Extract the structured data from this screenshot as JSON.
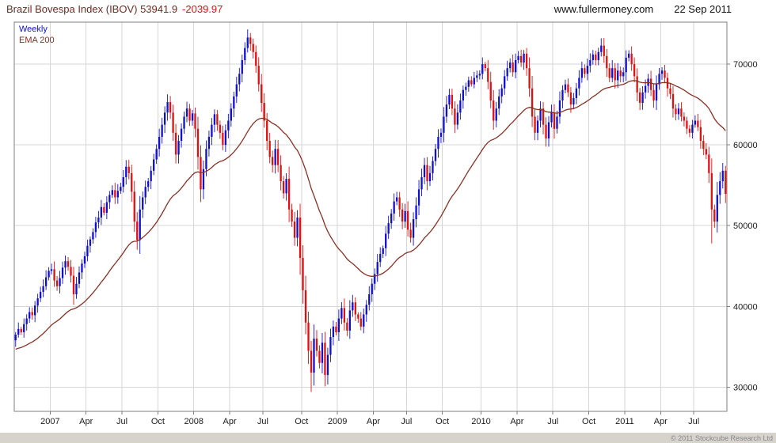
{
  "header": {
    "title": "Brazil Bovespa Index (IBOV) 53941.9",
    "change": "-2039.97",
    "site": "www.fullermoney.com",
    "date": "22 Sep 2011"
  },
  "legend": {
    "timeframe": "Weekly",
    "ema": "EMA 200"
  },
  "footer": {
    "copyright": "© 2011 Stockcube Research Ltd"
  },
  "colors": {
    "up": "#1010cc",
    "down": "#e01010",
    "ema": "#8a2f23",
    "grid": "#d6d6d6",
    "frame": "#7f7f7f",
    "axis_text": "#1a1a1a"
  },
  "chart_data": {
    "type": "candlestick",
    "title": "Brazil Bovespa Index (IBOV)",
    "timeframe": "Weekly",
    "last_price": 53941.9,
    "change": -2039.97,
    "date": "22 Sep 2011",
    "legend": [
      "Weekly",
      "EMA 200"
    ],
    "y_ticks": [
      30000,
      40000,
      50000,
      60000,
      70000
    ],
    "y_domain": [
      27000,
      75200
    ],
    "grid": true,
    "x_range": "Oct 2006 - Sep 2011, weekly bars",
    "x_labels": [
      {
        "label": "2007",
        "week": 13
      },
      {
        "label": "Apr",
        "week": 26
      },
      {
        "label": "Jul",
        "week": 39
      },
      {
        "label": "Oct",
        "week": 52
      },
      {
        "label": "2008",
        "week": 65
      },
      {
        "label": "Apr",
        "week": 78
      },
      {
        "label": "Jul",
        "week": 90
      },
      {
        "label": "Oct",
        "week": 104
      },
      {
        "label": "2009",
        "week": 117
      },
      {
        "label": "Apr",
        "week": 130
      },
      {
        "label": "Jul",
        "week": 142
      },
      {
        "label": "Oct",
        "week": 155
      },
      {
        "label": "2010",
        "week": 169
      },
      {
        "label": "Apr",
        "week": 182
      },
      {
        "label": "Jul",
        "week": 195
      },
      {
        "label": "Oct",
        "week": 208
      },
      {
        "label": "2011",
        "week": 221
      },
      {
        "label": "Apr",
        "week": 234
      },
      {
        "label": "Jul",
        "week": 246
      }
    ],
    "weekly_closes": [
      36500,
      37200,
      36800,
      37800,
      38500,
      39300,
      38900,
      40100,
      41000,
      41800,
      42500,
      43600,
      44400,
      44600,
      43200,
      42500,
      43500,
      44800,
      45600,
      44900,
      43800,
      41500,
      42800,
      44200,
      45300,
      46200,
      47500,
      48300,
      49200,
      50400,
      51000,
      52300,
      51600,
      52900,
      53800,
      54400,
      53500,
      54300,
      54800,
      56000,
      57300,
      56500,
      54200,
      50500,
      48200,
      52000,
      53500,
      54800,
      55500,
      56800,
      58200,
      59500,
      61000,
      62500,
      64000,
      65300,
      64000,
      61500,
      58800,
      60500,
      62000,
      63500,
      64500,
      63000,
      63900,
      62000,
      58500,
      54500,
      57000,
      59500,
      61000,
      62500,
      63800,
      62500,
      61500,
      60000,
      61800,
      63000,
      64500,
      66000,
      67500,
      68800,
      70500,
      72000,
      73300,
      72500,
      71500,
      69800,
      67500,
      65200,
      63000,
      60500,
      58500,
      57500,
      59500,
      57500,
      55500,
      54000,
      55800,
      52000,
      50500,
      48500,
      51000,
      46000,
      42000,
      38000,
      34500,
      31800,
      36000,
      34500,
      33000,
      35500,
      31500,
      34000,
      36200,
      37500,
      36800,
      38500,
      39800,
      38000,
      37000,
      39500,
      40500,
      39000,
      38500,
      37500,
      39000,
      40200,
      41500,
      42800,
      44000,
      45500,
      46500,
      47200,
      49000,
      50300,
      51500,
      53000,
      53500,
      52000,
      50500,
      51800,
      49500,
      48500,
      50800,
      52500,
      54500,
      56000,
      57500,
      55500,
      56500,
      58000,
      59500,
      61000,
      61500,
      63500,
      65000,
      66200,
      64500,
      62500,
      64000,
      65500,
      66800,
      67200,
      68000,
      67500,
      68300,
      68600,
      68800,
      70000,
      69500,
      67800,
      65500,
      63000,
      64500,
      66000,
      67000,
      68500,
      69500,
      70200,
      69000,
      70500,
      71000,
      70200,
      71300,
      69500,
      67000,
      63500,
      61500,
      63000,
      64500,
      62500,
      60800,
      62800,
      64000,
      62000,
      63500,
      65500,
      66800,
      67500,
      66500,
      65000,
      65800,
      67000,
      68300,
      69500,
      68800,
      69800,
      70500,
      71200,
      70500,
      71500,
      72300,
      71000,
      69500,
      68300,
      69500,
      68000,
      69200,
      68500,
      69000,
      70800,
      71300,
      70000,
      68500,
      66500,
      65200,
      66500,
      67300,
      68200,
      66800,
      65500,
      67500,
      68800,
      69200,
      68300,
      67000,
      66300,
      64500,
      63800,
      64500,
      63500,
      63000,
      62000,
      61500,
      62500,
      63000,
      62200,
      60500,
      59500,
      58800,
      56500,
      52000,
      50500,
      53800,
      55500,
      56800,
      53941.9
    ],
    "wick_overrides": {
      "84": {
        "high": 74300
      },
      "107": {
        "low": 29400
      },
      "112": {
        "low": 30100
      },
      "212": {
        "high": 73200
      },
      "252": {
        "low": 47800
      },
      "257": {
        "low": 52800,
        "high": 57400
      }
    },
    "ema": {
      "label": "EMA 200",
      "period_weeks": 40,
      "seed": 34600
    }
  }
}
